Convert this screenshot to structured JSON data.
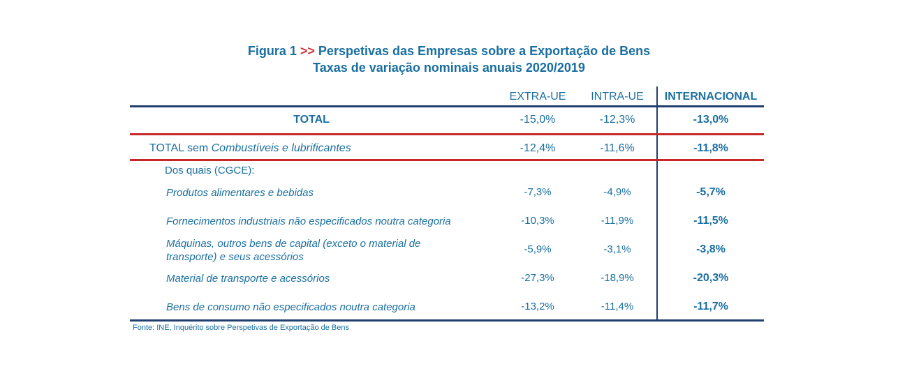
{
  "title": {
    "prefix": "Figura 1",
    "arrows": ">>",
    "main": "Perspetivas das Empresas sobre a Exportação de Bens",
    "subtitle": "Taxas de variação nominais anuais 2020/2019"
  },
  "columns": [
    "EXTRA-UE",
    "INTRA-UE",
    "INTERNACIONAL"
  ],
  "total": {
    "label": "TOTAL",
    "values": [
      "-15,0%",
      "-12,3%",
      "-13,0%"
    ]
  },
  "total_sem": {
    "label_plain": "TOTAL sem ",
    "label_italic": "Combustíveis e lubrificantes",
    "values": [
      "-12,4%",
      "-11,6%",
      "-11,8%"
    ]
  },
  "sub_header": "Dos quais (CGCE):",
  "items": [
    {
      "label": "Produtos alimentares e bebidas",
      "values": [
        "-7,3%",
        "-4,9%",
        "-5,7%"
      ]
    },
    {
      "label": "Fornecimentos industriais não especificados noutra categoria",
      "values": [
        "-10,3%",
        "-11,9%",
        "-11,5%"
      ]
    },
    {
      "label": "Máquinas, outros bens de capital (exceto o material de transporte) e seus acessórios",
      "values": [
        "-5,9%",
        "-3,1%",
        "-3,8%"
      ]
    },
    {
      "label": "Material de transporte e acessórios",
      "values": [
        "-27,3%",
        "-18,9%",
        "-20,3%"
      ]
    },
    {
      "label": "Bens de consumo não especificados noutra categoria",
      "values": [
        "-13,2%",
        "-11,4%",
        "-11,7%"
      ]
    }
  ],
  "source": "Fonte: INE, Inquérito sobre Perspetivas de Exportação de Bens",
  "colors": {
    "text": "#1a6fa0",
    "accent_red": "#c62828",
    "rule_blue": "#1f3f6e"
  },
  "chart_data": {
    "type": "table",
    "title": "Perspetivas das Empresas sobre a Exportação de Bens",
    "subtitle": "Taxas de variação nominais anuais 2020/2019",
    "columns": [
      "EXTRA-UE",
      "INTRA-UE",
      "INTERNACIONAL"
    ],
    "rows": [
      {
        "label": "TOTAL",
        "values": [
          -15.0,
          -12.3,
          -13.0
        ]
      },
      {
        "label": "TOTAL sem Combustíveis e lubrificantes",
        "values": [
          -12.4,
          -11.6,
          -11.8
        ]
      },
      {
        "label": "Produtos alimentares e bebidas",
        "values": [
          -7.3,
          -4.9,
          -5.7
        ]
      },
      {
        "label": "Fornecimentos industriais não especificados noutra categoria",
        "values": [
          -10.3,
          -11.9,
          -11.5
        ]
      },
      {
        "label": "Máquinas, outros bens de capital (exceto o material de transporte) e seus acessórios",
        "values": [
          -5.9,
          -3.1,
          -3.8
        ]
      },
      {
        "label": "Material de transporte e acessórios",
        "values": [
          -27.3,
          -18.9,
          -20.3
        ]
      },
      {
        "label": "Bens de consumo não especificados noutra categoria",
        "values": [
          -13.2,
          -11.4,
          -11.7
        ]
      }
    ]
  }
}
